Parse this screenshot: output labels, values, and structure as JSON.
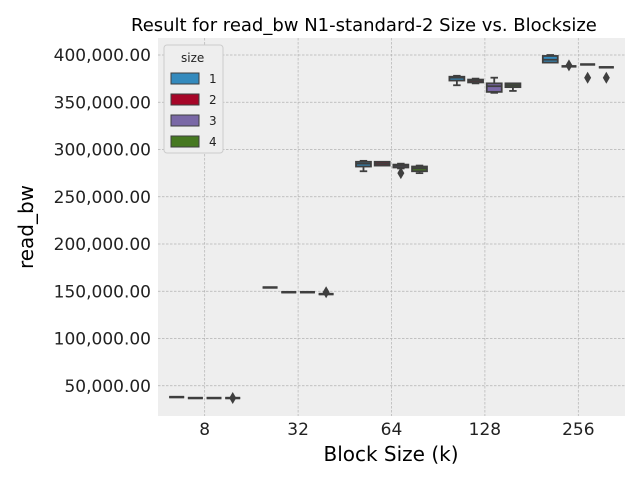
{
  "chart_data": {
    "type": "box",
    "title": "Result for read_bw N1-standard-2 Size vs. Blocksize",
    "xlabel": "Block Size (k)",
    "ylabel": "read_bw",
    "categories": [
      "8",
      "32",
      "64",
      "128",
      "256"
    ],
    "ylim": [
      18000,
      418000
    ],
    "yticks": [
      50000,
      100000,
      150000,
      200000,
      250000,
      300000,
      350000,
      400000
    ],
    "ytick_labels": [
      "50,000.00",
      "100,000.00",
      "150,000.00",
      "200,000.00",
      "250,000.00",
      "300,000.00",
      "350,000.00",
      "400,000.00"
    ],
    "grid": true,
    "legend": {
      "title": "size",
      "position": "upper-left",
      "entries": [
        "1",
        "2",
        "3",
        "4"
      ]
    },
    "series": [
      {
        "name": "1",
        "color": "#348ABD",
        "boxes": [
          {
            "category": "8",
            "min": 38000,
            "q1": 38000,
            "median": 38000,
            "q3": 38000,
            "max": 38000,
            "outliers": []
          },
          {
            "category": "32",
            "min": 154000,
            "q1": 154000,
            "median": 154000,
            "q3": 154000,
            "max": 154000,
            "outliers": []
          },
          {
            "category": "64",
            "min": 277000,
            "q1": 282000,
            "median": 285000,
            "q3": 287000,
            "max": 288000,
            "outliers": []
          },
          {
            "category": "128",
            "min": 368000,
            "q1": 373000,
            "median": 376000,
            "q3": 377000,
            "max": 378000,
            "outliers": []
          },
          {
            "category": "256",
            "min": 392000,
            "q1": 392000,
            "median": 395000,
            "q3": 399000,
            "max": 400000,
            "outliers": []
          }
        ]
      },
      {
        "name": "2",
        "color": "#A60628",
        "boxes": [
          {
            "category": "8",
            "min": 37000,
            "q1": 37000,
            "median": 37000,
            "q3": 37000,
            "max": 37000,
            "outliers": []
          },
          {
            "category": "32",
            "min": 149000,
            "q1": 149000,
            "median": 149000,
            "q3": 149000,
            "max": 149000,
            "outliers": []
          },
          {
            "category": "64",
            "min": 283000,
            "q1": 283000,
            "median": 285000,
            "q3": 287000,
            "max": 287000,
            "outliers": []
          },
          {
            "category": "128",
            "min": 370000,
            "q1": 371000,
            "median": 373000,
            "q3": 374000,
            "max": 375000,
            "outliers": []
          },
          {
            "category": "256",
            "min": 388000,
            "q1": 388000,
            "median": 388000,
            "q3": 388000,
            "max": 388000,
            "outliers": [
              389000
            ]
          }
        ]
      },
      {
        "name": "3",
        "color": "#7A68A6",
        "boxes": [
          {
            "category": "8",
            "min": 37000,
            "q1": 37000,
            "median": 37000,
            "q3": 37000,
            "max": 37000,
            "outliers": []
          },
          {
            "category": "32",
            "min": 149000,
            "q1": 149000,
            "median": 149000,
            "q3": 149000,
            "max": 149000,
            "outliers": []
          },
          {
            "category": "64",
            "min": 280000,
            "q1": 281000,
            "median": 283000,
            "q3": 284000,
            "max": 285000,
            "outliers": [
              275000
            ]
          },
          {
            "category": "128",
            "min": 360000,
            "q1": 361000,
            "median": 367000,
            "q3": 370000,
            "max": 376000,
            "outliers": []
          },
          {
            "category": "256",
            "min": 390000,
            "q1": 390000,
            "median": 390000,
            "q3": 390000,
            "max": 390000,
            "outliers": [
              376000
            ]
          }
        ]
      },
      {
        "name": "4",
        "color": "#467821",
        "boxes": [
          {
            "category": "8",
            "min": 37000,
            "q1": 37000,
            "median": 37000,
            "q3": 37000,
            "max": 37000,
            "outliers": [
              37000
            ]
          },
          {
            "category": "32",
            "min": 147000,
            "q1": 147000,
            "median": 147000,
            "q3": 147000,
            "max": 147000,
            "outliers": [
              149000
            ]
          },
          {
            "category": "64",
            "min": 275000,
            "q1": 277000,
            "median": 280000,
            "q3": 282000,
            "max": 283000,
            "outliers": []
          },
          {
            "category": "128",
            "min": 362000,
            "q1": 366000,
            "median": 368000,
            "q3": 370000,
            "max": 370000,
            "outliers": []
          },
          {
            "category": "256",
            "min": 387000,
            "q1": 387000,
            "median": 387000,
            "q3": 387000,
            "max": 387000,
            "outliers": [
              376000
            ]
          }
        ]
      }
    ]
  }
}
